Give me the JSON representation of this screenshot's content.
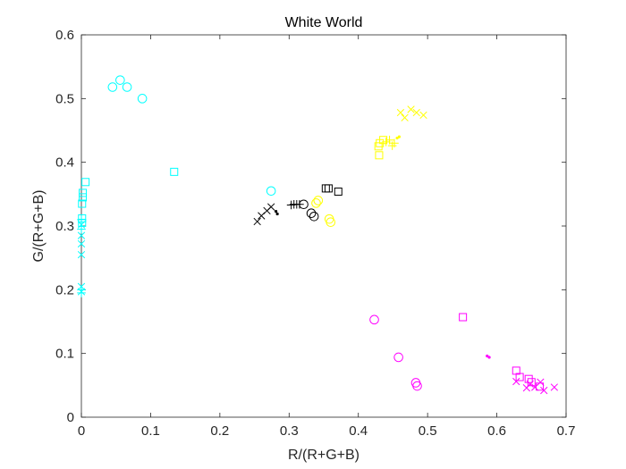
{
  "chart_data": {
    "type": "scatter",
    "title": "White World",
    "xlabel": "R/(R+G+B)",
    "ylabel": "G/(R+G+B)",
    "xlim": [
      0,
      0.7
    ],
    "ylim": [
      0,
      0.6
    ],
    "xticks": [
      0,
      0.1,
      0.2,
      0.3,
      0.4,
      0.5,
      0.6,
      0.7
    ],
    "yticks": [
      0,
      0.1,
      0.2,
      0.3,
      0.4,
      0.5,
      0.6
    ],
    "xtick_labels": [
      "0",
      "0.1",
      "0.2",
      "0.3",
      "0.4",
      "0.5",
      "0.6",
      "0.7"
    ],
    "ytick_labels": [
      "0",
      "0.1",
      "0.2",
      "0.3",
      "0.4",
      "0.5",
      "0.6"
    ],
    "grid": false,
    "series": [
      {
        "color": "#00ffff",
        "marker": "circle",
        "x": [
          0.045,
          0.056,
          0.066,
          0.088,
          0.274
        ],
        "y": [
          0.518,
          0.529,
          0.518,
          0.5,
          0.355
        ]
      },
      {
        "color": "#00ffff",
        "marker": "square",
        "x": [
          0.006,
          0.134,
          0.002,
          0.002,
          0.001,
          0.001,
          0.001
        ],
        "y": [
          0.369,
          0.385,
          0.352,
          0.345,
          0.335,
          0.312,
          0.305
        ]
      },
      {
        "color": "#00ffff",
        "marker": "x",
        "x": [
          0.0,
          0.0,
          0.0,
          0.0,
          0.0,
          0.0
        ],
        "y": [
          0.302,
          0.285,
          0.272,
          0.255,
          0.205,
          0.197
        ]
      },
      {
        "color": "#00ffff",
        "marker": "plus",
        "x": [
          0.0,
          0.0,
          0.0,
          0.0
        ],
        "y": [
          0.31,
          0.295,
          0.2,
          0.195
        ]
      },
      {
        "color": "#000000",
        "marker": "circle",
        "x": [
          0.321,
          0.332,
          0.336
        ],
        "y": [
          0.334,
          0.32,
          0.315
        ]
      },
      {
        "color": "#000000",
        "marker": "square",
        "x": [
          0.353,
          0.357,
          0.371
        ],
        "y": [
          0.359,
          0.359,
          0.354
        ]
      },
      {
        "color": "#000000",
        "marker": "x",
        "x": [
          0.254,
          0.26,
          0.268,
          0.274
        ],
        "y": [
          0.307,
          0.316,
          0.324,
          0.33
        ]
      },
      {
        "color": "#000000",
        "marker": "plus",
        "x": [
          0.303,
          0.307,
          0.311,
          0.315
        ],
        "y": [
          0.333,
          0.334,
          0.334,
          0.334
        ]
      },
      {
        "color": "#000000",
        "marker": "dot",
        "x": [
          0.281,
          0.283
        ],
        "y": [
          0.323,
          0.319
        ]
      },
      {
        "color": "#ffff00",
        "marker": "circle",
        "x": [
          0.339,
          0.342,
          0.358,
          0.36
        ],
        "y": [
          0.336,
          0.34,
          0.311,
          0.306
        ]
      },
      {
        "color": "#ffff00",
        "marker": "square",
        "x": [
          0.429,
          0.431,
          0.436,
          0.43
        ],
        "y": [
          0.425,
          0.43,
          0.435,
          0.411
        ]
      },
      {
        "color": "#ffff00",
        "marker": "x",
        "x": [
          0.461,
          0.467,
          0.476,
          0.484,
          0.494
        ],
        "y": [
          0.478,
          0.47,
          0.483,
          0.478,
          0.474
        ]
      },
      {
        "color": "#ffff00",
        "marker": "plus",
        "x": [
          0.44,
          0.445,
          0.449,
          0.452
        ],
        "y": [
          0.432,
          0.435,
          0.426,
          0.43
        ]
      },
      {
        "color": "#ffff00",
        "marker": "dot",
        "x": [
          0.456,
          0.459
        ],
        "y": [
          0.438,
          0.44
        ]
      },
      {
        "color": "#ff00ff",
        "marker": "circle",
        "x": [
          0.423,
          0.458,
          0.483,
          0.485
        ],
        "y": [
          0.153,
          0.094,
          0.054,
          0.049
        ]
      },
      {
        "color": "#ff00ff",
        "marker": "square",
        "x": [
          0.551,
          0.628,
          0.633,
          0.646,
          0.65,
          0.662
        ],
        "y": [
          0.157,
          0.073,
          0.063,
          0.06,
          0.055,
          0.048
        ]
      },
      {
        "color": "#ff00ff",
        "marker": "x",
        "x": [
          0.628,
          0.643,
          0.648,
          0.655,
          0.663,
          0.668,
          0.683
        ],
        "y": [
          0.056,
          0.046,
          0.052,
          0.047,
          0.055,
          0.042,
          0.047
        ]
      },
      {
        "color": "#ff00ff",
        "marker": "dot",
        "x": [
          0.586,
          0.589
        ],
        "y": [
          0.096,
          0.094
        ]
      }
    ]
  }
}
